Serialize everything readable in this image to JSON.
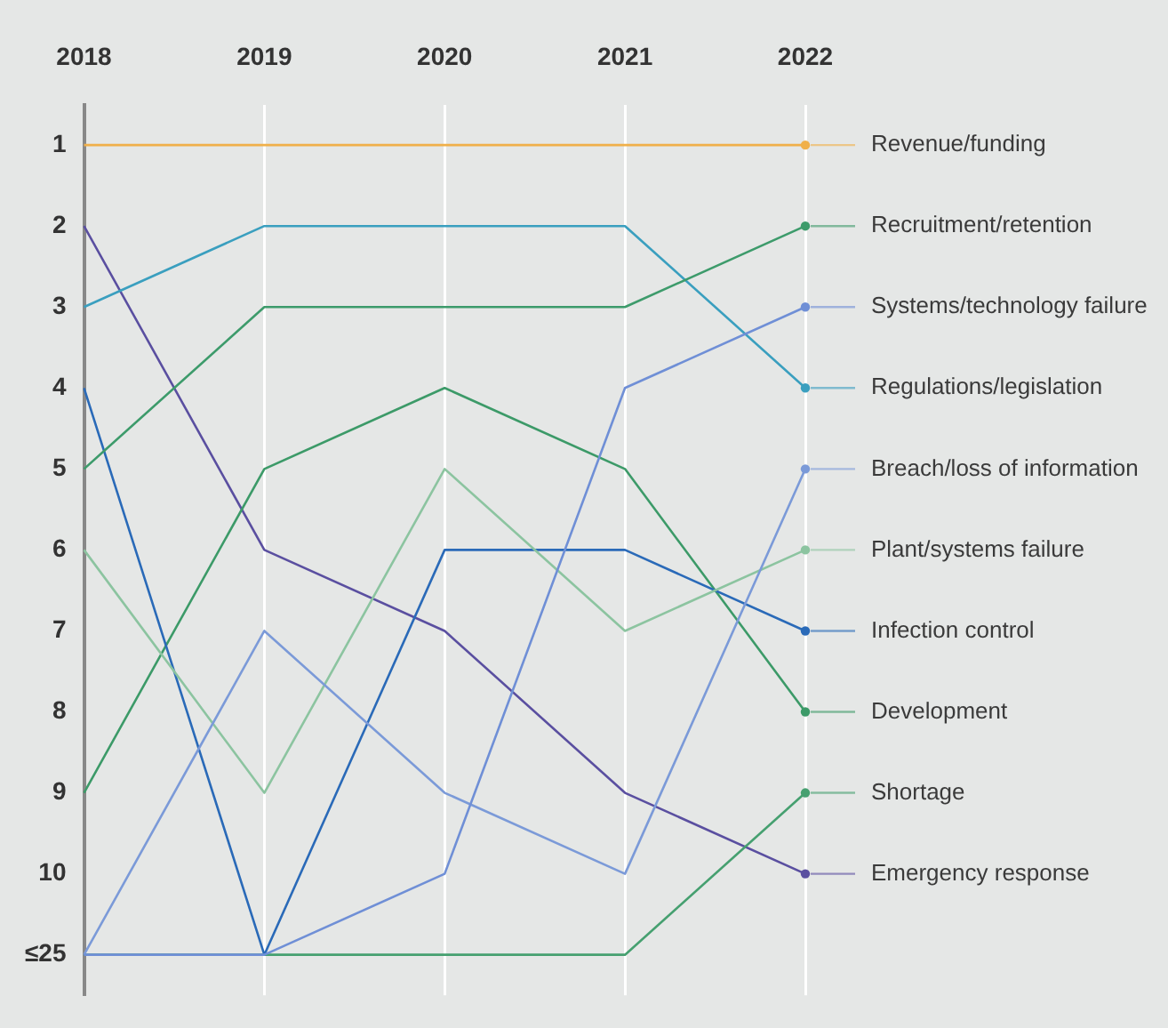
{
  "chart_data": {
    "type": "line",
    "categories": [
      "2018",
      "2019",
      "2020",
      "2021",
      "2022"
    ],
    "ylim": [
      11.5,
      0.5
    ],
    "yticks": [
      1,
      2,
      3,
      4,
      5,
      6,
      7,
      8,
      9,
      10,
      {
        "value": 11,
        "label": "≤25"
      }
    ],
    "grid": "x",
    "legend": "right",
    "line_style": "solid",
    "series": [
      {
        "name": "Revenue/funding",
        "color": "#f0b04a",
        "values": [
          1,
          1,
          1,
          1,
          1
        ]
      },
      {
        "name": "Recruitment/retention",
        "color": "#3d9b6b",
        "values": [
          5,
          3,
          3,
          3,
          2
        ]
      },
      {
        "name": "Systems/technology failure",
        "color": "#6f8fd6",
        "values": [
          11,
          11,
          10,
          4,
          3
        ]
      },
      {
        "name": "Regulations/legislation",
        "color": "#3a9fbf",
        "values": [
          3,
          2,
          2,
          2,
          4
        ]
      },
      {
        "name": "Breach/loss of information",
        "color": "#7b9ad8",
        "values": [
          11,
          7,
          9,
          10,
          5
        ]
      },
      {
        "name": "Plant/systems failure",
        "color": "#8cc4a0",
        "values": [
          6,
          9,
          5,
          7,
          6
        ]
      },
      {
        "name": "Infection control",
        "color": "#2a6ab8",
        "values": [
          4,
          11,
          6,
          6,
          7
        ]
      },
      {
        "name": "Development",
        "color": "#3c9a68",
        "values": [
          9,
          5,
          4,
          5,
          8
        ]
      },
      {
        "name": "Shortage",
        "color": "#46a070",
        "values": [
          11,
          11,
          11,
          11,
          9
        ]
      },
      {
        "name": "Emergency response",
        "color": "#5a4fa0",
        "values": [
          2,
          6,
          7,
          9,
          10
        ]
      }
    ]
  }
}
